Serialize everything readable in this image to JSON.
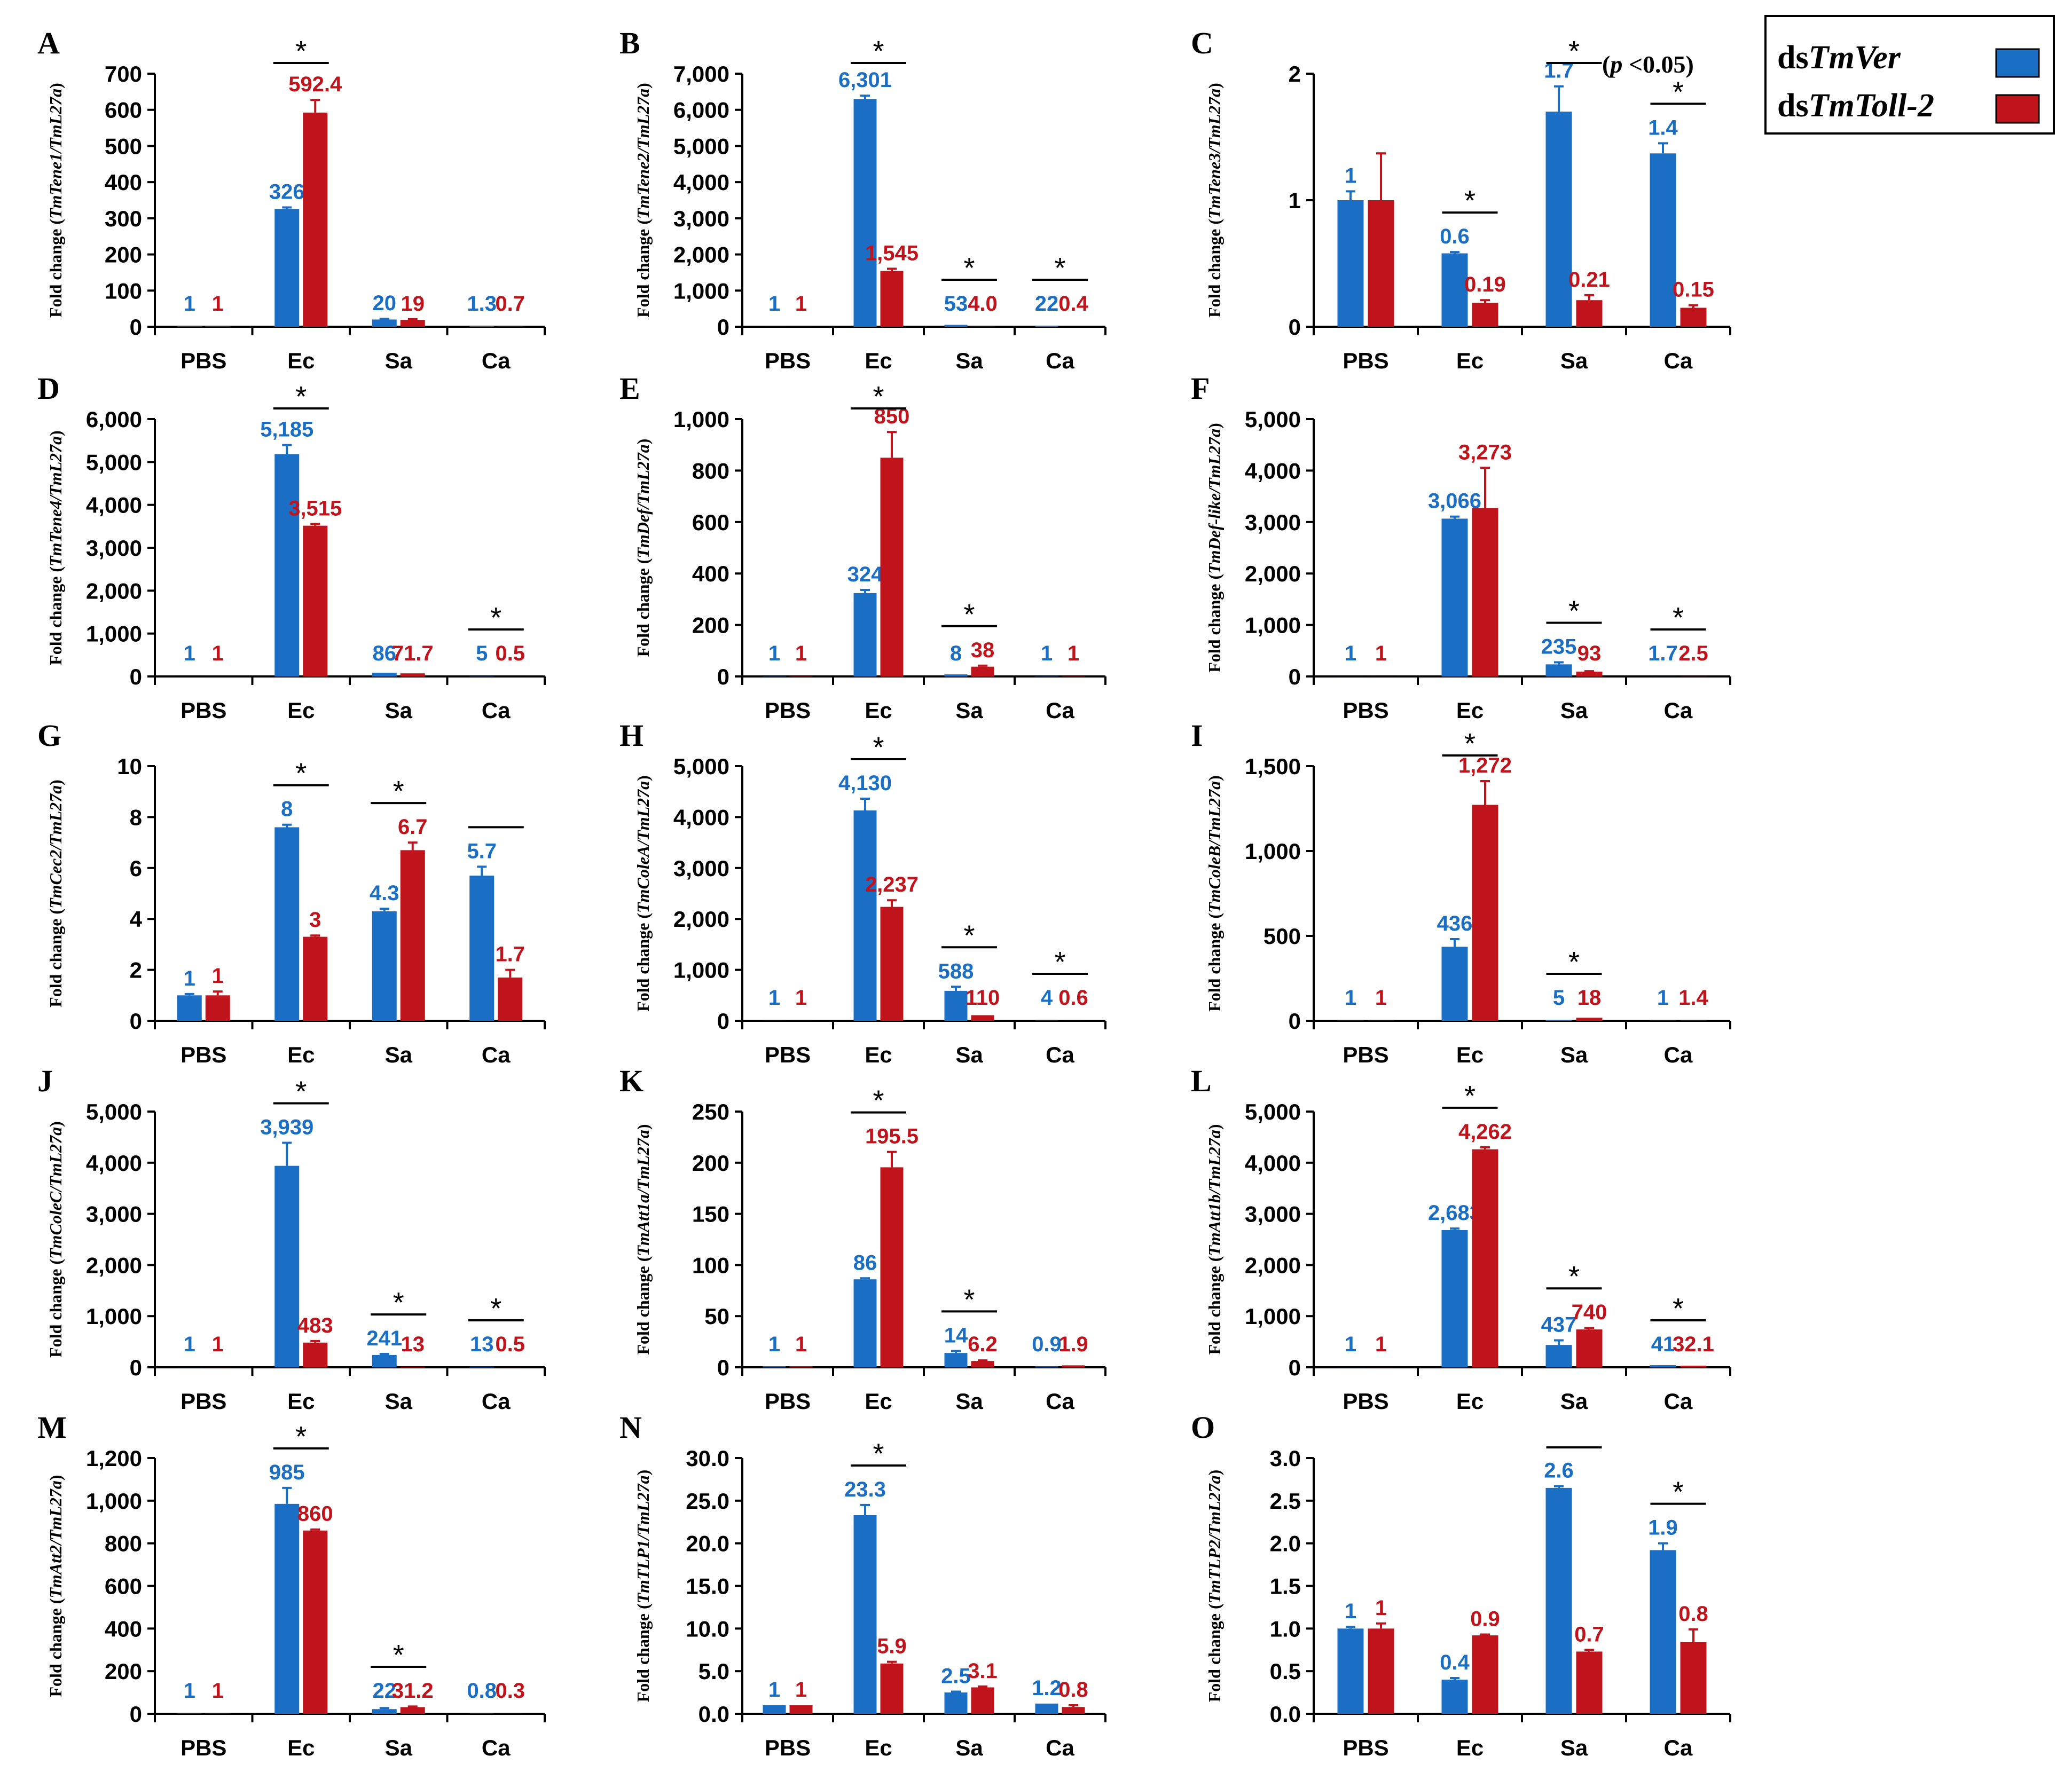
{
  "legend": {
    "items": [
      {
        "prefix": "ds",
        "name": "TmVer",
        "color": "#1a6fc4"
      },
      {
        "prefix": "ds",
        "name": "TmToll-2",
        "color": "#c0141c"
      }
    ]
  },
  "significance_note": {
    "open": "(",
    "p": "p",
    "rest": " <0.05)"
  },
  "chart_data": [
    {
      "panel": "A",
      "type": "bar",
      "ylabel": {
        "pre": "Fold change (",
        "gene": "TmTene1/TmL27a",
        "post": ")"
      },
      "categories": [
        "PBS",
        "Ec",
        "Sa",
        "Ca"
      ],
      "ylim": [
        0,
        700
      ],
      "yticks": [
        "0",
        "100",
        "200",
        "300",
        "400",
        "500",
        "600",
        "700"
      ],
      "series": [
        {
          "name": "dsTmVer",
          "values": [
            1,
            326,
            20,
            1.3
          ]
        },
        {
          "name": "dsTmToll-2",
          "values": [
            1,
            592.4,
            19,
            0.7
          ]
        }
      ],
      "errors": [
        [
          0,
          4,
          2,
          0
        ],
        [
          0,
          35,
          2,
          0
        ]
      ],
      "labels": [
        [
          "1",
          "326",
          "20",
          "1.3"
        ],
        [
          "1",
          "592.4",
          "19",
          "0.7"
        ]
      ],
      "sig": [
        {
          "cat": 1,
          "star": true
        }
      ]
    },
    {
      "panel": "B",
      "type": "bar",
      "ylabel": {
        "pre": "Fold change (",
        "gene": "TmTene2/TmL27a",
        "post": ")"
      },
      "categories": [
        "PBS",
        "Ec",
        "Sa",
        "Ca"
      ],
      "ylim": [
        0,
        7000
      ],
      "yticks": [
        "0",
        "1,000",
        "2,000",
        "3,000",
        "4,000",
        "5,000",
        "6,000",
        "7,000"
      ],
      "series": [
        {
          "name": "dsTmVer",
          "values": [
            1,
            6301,
            53,
            22
          ]
        },
        {
          "name": "dsTmToll-2",
          "values": [
            1,
            1545,
            4.0,
            0.4
          ]
        }
      ],
      "errors": [
        [
          0,
          90,
          0,
          0
        ],
        [
          0,
          60,
          0,
          0
        ]
      ],
      "labels": [
        [
          "1",
          "6,301",
          "53",
          "22"
        ],
        [
          "1",
          "1,545",
          "4.0",
          "0.4"
        ]
      ],
      "sig": [
        {
          "cat": 1,
          "star": true
        },
        {
          "cat": 2,
          "star": true
        },
        {
          "cat": 3,
          "star": true
        }
      ]
    },
    {
      "panel": "C",
      "type": "bar",
      "ylabel": {
        "pre": "Fold change (",
        "gene": "TmTene3/TmL27a",
        "post": ")"
      },
      "categories": [
        "PBS",
        "Ec",
        "Sa",
        "Ca"
      ],
      "ylim": [
        0,
        2
      ],
      "yticks": [
        "0",
        "1",
        "2"
      ],
      "series": [
        {
          "name": "dsTmVer",
          "values": [
            1,
            0.58,
            1.7,
            1.37
          ]
        },
        {
          "name": "dsTmToll-2",
          "values": [
            1,
            0.19,
            0.21,
            0.15
          ]
        }
      ],
      "errors": [
        [
          0.07,
          0.01,
          0.2,
          0.08
        ],
        [
          0.37,
          0.02,
          0.04,
          0.02
        ]
      ],
      "labels": [
        [
          "1",
          "0.6",
          "1.7",
          "1.4"
        ],
        [
          "",
          "0.19",
          "0.21",
          "0.15"
        ]
      ],
      "sig": [
        {
          "cat": 1,
          "star": true
        },
        {
          "cat": 2,
          "star": true
        },
        {
          "cat": 3,
          "star": true
        }
      ]
    },
    {
      "panel": "D",
      "type": "bar",
      "ylabel": {
        "pre": "Fold change (",
        "gene": "TmTene4/TmL27a",
        "post": ")"
      },
      "categories": [
        "PBS",
        "Ec",
        "Sa",
        "Ca"
      ],
      "ylim": [
        0,
        6000
      ],
      "yticks": [
        "0",
        "1,000",
        "2,000",
        "3,000",
        "4,000",
        "5,000",
        "6,000"
      ],
      "series": [
        {
          "name": "dsTmVer",
          "values": [
            1,
            5185,
            86,
            5
          ]
        },
        {
          "name": "dsTmToll-2",
          "values": [
            1,
            3515,
            71.7,
            0.5
          ]
        }
      ],
      "errors": [
        [
          0,
          210,
          0,
          0
        ],
        [
          0,
          40,
          0,
          0
        ]
      ],
      "labels": [
        [
          "1",
          "5,185",
          "86",
          "5"
        ],
        [
          "1",
          "3,515",
          "71.7",
          "0.5"
        ]
      ],
      "sig": [
        {
          "cat": 1,
          "star": true
        },
        {
          "cat": 3,
          "star": true
        }
      ]
    },
    {
      "panel": "E",
      "type": "bar",
      "ylabel": {
        "pre": "Fold change (",
        "gene": "TmDef/TmL27a",
        "post": ")"
      },
      "categories": [
        "PBS",
        "Ec",
        "Sa",
        "Ca"
      ],
      "ylim": [
        0,
        1000
      ],
      "yticks": [
        "0",
        "200",
        "400",
        "600",
        "800",
        "1,000"
      ],
      "series": [
        {
          "name": "dsTmVer",
          "values": [
            1,
            324,
            8,
            1
          ]
        },
        {
          "name": "dsTmToll-2",
          "values": [
            1,
            850,
            38,
            1
          ]
        }
      ],
      "errors": [
        [
          0,
          12,
          0,
          0
        ],
        [
          0,
          100,
          4,
          0
        ]
      ],
      "labels": [
        [
          "1",
          "324",
          "8",
          "1"
        ],
        [
          "1",
          "850",
          "38",
          "1"
        ]
      ],
      "sig": [
        {
          "cat": 1,
          "star": true
        },
        {
          "cat": 2,
          "star": true
        }
      ]
    },
    {
      "panel": "F",
      "type": "bar",
      "ylabel": {
        "pre": "Fold change (",
        "gene": "TmDef-like/TmL27a",
        "post": ")"
      },
      "categories": [
        "PBS",
        "Ec",
        "Sa",
        "Ca"
      ],
      "ylim": [
        0,
        5000
      ],
      "yticks": [
        "0",
        "1,000",
        "2,000",
        "3,000",
        "4,000",
        "5,000"
      ],
      "series": [
        {
          "name": "dsTmVer",
          "values": [
            1,
            3066,
            235,
            1.7
          ]
        },
        {
          "name": "dsTmToll-2",
          "values": [
            1,
            3273,
            93,
            2.5
          ]
        }
      ],
      "errors": [
        [
          0,
          40,
          40,
          0
        ],
        [
          0,
          780,
          10,
          0
        ]
      ],
      "labels": [
        [
          "1",
          "3,066",
          "235",
          "1.7"
        ],
        [
          "1",
          "3,273",
          "93",
          "2.5"
        ]
      ],
      "sig": [
        {
          "cat": 2,
          "star": true
        },
        {
          "cat": 3,
          "star": true
        }
      ]
    },
    {
      "panel": "G",
      "type": "bar",
      "ylabel": {
        "pre": "Fold change (",
        "gene": "TmCec2/TmL27a",
        "post": ")"
      },
      "categories": [
        "PBS",
        "Ec",
        "Sa",
        "Ca"
      ],
      "ylim": [
        0,
        10
      ],
      "yticks": [
        "0",
        "2",
        "4",
        "6",
        "8",
        "10"
      ],
      "series": [
        {
          "name": "dsTmVer",
          "values": [
            1,
            7.6,
            4.3,
            5.7
          ]
        },
        {
          "name": "dsTmToll-2",
          "values": [
            1,
            3.3,
            6.7,
            1.7
          ]
        }
      ],
      "errors": [
        [
          0.05,
          0.1,
          0.1,
          0.35
        ],
        [
          0.15,
          0.05,
          0.3,
          0.3
        ]
      ],
      "labels": [
        [
          "1",
          "8",
          "4.3",
          "5.7"
        ],
        [
          "1",
          "3",
          "6.7",
          "1.7"
        ]
      ],
      "sig": [
        {
          "cat": 1,
          "star": true
        },
        {
          "cat": 2,
          "star": true
        },
        {
          "cat": 3,
          "star": false
        }
      ]
    },
    {
      "panel": "H",
      "type": "bar",
      "ylabel": {
        "pre": "Fold change (",
        "gene": "TmColeA/TmL27a",
        "post": ")"
      },
      "categories": [
        "PBS",
        "Ec",
        "Sa",
        "Ca"
      ],
      "ylim": [
        0,
        5000
      ],
      "yticks": [
        "0",
        "1,000",
        "2,000",
        "3,000",
        "4,000",
        "5,000"
      ],
      "series": [
        {
          "name": "dsTmVer",
          "values": [
            1,
            4130,
            588,
            4
          ]
        },
        {
          "name": "dsTmToll-2",
          "values": [
            1,
            2237,
            110,
            0.6
          ]
        }
      ],
      "errors": [
        [
          0,
          230,
          80,
          0
        ],
        [
          0,
          130,
          0,
          0
        ]
      ],
      "labels": [
        [
          "1",
          "4,130",
          "588",
          "4"
        ],
        [
          "1",
          "2,237",
          "110",
          "0.6"
        ]
      ],
      "sig": [
        {
          "cat": 1,
          "star": true
        },
        {
          "cat": 2,
          "star": true
        },
        {
          "cat": 3,
          "star": true
        }
      ]
    },
    {
      "panel": "I",
      "type": "bar",
      "ylabel": {
        "pre": "Fold change (",
        "gene": "TmColeB/TmL27a",
        "post": ")"
      },
      "categories": [
        "PBS",
        "Ec",
        "Sa",
        "Ca"
      ],
      "ylim": [
        0,
        1500
      ],
      "yticks": [
        "0",
        "500",
        "1,000",
        "1,500"
      ],
      "series": [
        {
          "name": "dsTmVer",
          "values": [
            1,
            436,
            5,
            1
          ]
        },
        {
          "name": "dsTmToll-2",
          "values": [
            1,
            1272,
            18,
            1.4
          ]
        }
      ],
      "errors": [
        [
          0,
          45,
          0,
          0
        ],
        [
          0,
          140,
          0,
          0
        ]
      ],
      "labels": [
        [
          "1",
          "436",
          "5",
          "1"
        ],
        [
          "1",
          "1,272",
          "18",
          "1.4"
        ]
      ],
      "sig": [
        {
          "cat": 1,
          "star": true
        },
        {
          "cat": 2,
          "star": true
        }
      ]
    },
    {
      "panel": "J",
      "type": "bar",
      "ylabel": {
        "pre": "Fold change (",
        "gene": "TmColeC/TmL27a",
        "post": ")"
      },
      "categories": [
        "PBS",
        "Ec",
        "Sa",
        "Ca"
      ],
      "ylim": [
        0,
        5000
      ],
      "yticks": [
        "0",
        "1,000",
        "2,000",
        "3,000",
        "4,000",
        "5,000"
      ],
      "series": [
        {
          "name": "dsTmVer",
          "values": [
            1,
            3939,
            241,
            13
          ]
        },
        {
          "name": "dsTmToll-2",
          "values": [
            1,
            483,
            13,
            0.5
          ]
        }
      ],
      "errors": [
        [
          0,
          450,
          20,
          0
        ],
        [
          0,
          30,
          0,
          0
        ]
      ],
      "labels": [
        [
          "1",
          "3,939",
          "241",
          "13"
        ],
        [
          "1",
          "483",
          "13",
          "0.5"
        ]
      ],
      "sig": [
        {
          "cat": 1,
          "star": true
        },
        {
          "cat": 2,
          "star": true
        },
        {
          "cat": 3,
          "star": true
        }
      ]
    },
    {
      "panel": "K",
      "type": "bar",
      "ylabel": {
        "pre": "Fold change (",
        "gene": "TmAtt1a/TmL27a",
        "post": ")"
      },
      "categories": [
        "PBS",
        "Ec",
        "Sa",
        "Ca"
      ],
      "ylim": [
        0,
        250
      ],
      "yticks": [
        "0",
        "50",
        "100",
        "150",
        "200",
        "250"
      ],
      "series": [
        {
          "name": "dsTmVer",
          "values": [
            1,
            86,
            14,
            0.9
          ]
        },
        {
          "name": "dsTmToll-2",
          "values": [
            1,
            195.5,
            6.2,
            1.9
          ]
        }
      ],
      "errors": [
        [
          0,
          1,
          2,
          0
        ],
        [
          0,
          15,
          0.5,
          0
        ]
      ],
      "labels": [
        [
          "1",
          "86",
          "14",
          "0.9"
        ],
        [
          "1",
          "195.5",
          "6.2",
          "1.9"
        ]
      ],
      "sig": [
        {
          "cat": 1,
          "star": true
        },
        {
          "cat": 2,
          "star": true
        }
      ]
    },
    {
      "panel": "L",
      "type": "bar",
      "ylabel": {
        "pre": "Fold change (",
        "gene": "TmAtt1b/TmL27a",
        "post": ")"
      },
      "categories": [
        "PBS",
        "Ec",
        "Sa",
        "Ca"
      ],
      "ylim": [
        0,
        5000
      ],
      "yticks": [
        "0",
        "1,000",
        "2,000",
        "3,000",
        "4,000",
        "5,000"
      ],
      "series": [
        {
          "name": "dsTmVer",
          "values": [
            1,
            2683,
            437,
            41
          ]
        },
        {
          "name": "dsTmToll-2",
          "values": [
            1,
            4262,
            740,
            32.1
          ]
        }
      ],
      "errors": [
        [
          0,
          30,
          90,
          0
        ],
        [
          0,
          40,
          30,
          0
        ]
      ],
      "labels": [
        [
          "1",
          "2,683",
          "437",
          "41"
        ],
        [
          "1",
          "4,262",
          "740",
          "32.1"
        ]
      ],
      "sig": [
        {
          "cat": 1,
          "star": true
        },
        {
          "cat": 2,
          "star": true
        },
        {
          "cat": 3,
          "star": true
        }
      ]
    },
    {
      "panel": "M",
      "type": "bar",
      "ylabel": {
        "pre": "Fold change (",
        "gene": "TmAtt2/TmL27a",
        "post": ")"
      },
      "categories": [
        "PBS",
        "Ec",
        "Sa",
        "Ca"
      ],
      "ylim": [
        0,
        1200
      ],
      "yticks": [
        "0",
        "200",
        "400",
        "600",
        "800",
        "1,000",
        "1,200"
      ],
      "series": [
        {
          "name": "dsTmVer",
          "values": [
            1,
            985,
            22,
            0.8
          ]
        },
        {
          "name": "dsTmToll-2",
          "values": [
            1,
            860,
            31.2,
            0.3
          ]
        }
      ],
      "errors": [
        [
          0,
          75,
          5,
          0
        ],
        [
          0,
          5,
          3,
          0
        ]
      ],
      "labels": [
        [
          "1",
          "985",
          "22",
          "0.8"
        ],
        [
          "1",
          "860",
          "31.2",
          "0.3"
        ]
      ],
      "sig": [
        {
          "cat": 1,
          "star": true
        },
        {
          "cat": 2,
          "star": true
        }
      ]
    },
    {
      "panel": "N",
      "type": "bar",
      "ylabel": {
        "pre": "Fold change (",
        "gene": "TmTLP1/TmL27a",
        "post": ")"
      },
      "categories": [
        "PBS",
        "Ec",
        "Sa",
        "Ca"
      ],
      "ylim": [
        0,
        30
      ],
      "yticks": [
        "0.0",
        "5.0",
        "10.0",
        "15.0",
        "20.0",
        "25.0",
        "30.0"
      ],
      "series": [
        {
          "name": "dsTmVer",
          "values": [
            1,
            23.3,
            2.5,
            1.2
          ]
        },
        {
          "name": "dsTmToll-2",
          "values": [
            1,
            5.9,
            3.1,
            0.8
          ]
        }
      ],
      "errors": [
        [
          0,
          1.2,
          0.1,
          0
        ],
        [
          0,
          0.2,
          0.1,
          0.2
        ]
      ],
      "labels": [
        [
          "1",
          "23.3",
          "2.5",
          "1.2"
        ],
        [
          "1",
          "5.9",
          "3.1",
          "0.8"
        ]
      ],
      "sig": [
        {
          "cat": 1,
          "star": true
        }
      ]
    },
    {
      "panel": "O",
      "type": "bar",
      "ylabel": {
        "pre": "Fold change (",
        "gene": "TmTLP2/TmL27a",
        "post": ")"
      },
      "categories": [
        "PBS",
        "Ec",
        "Sa",
        "Ca"
      ],
      "ylim": [
        0,
        3
      ],
      "yticks": [
        "0.0",
        "0.5",
        "1.0",
        "1.5",
        "2.0",
        "2.5",
        "3.0"
      ],
      "series": [
        {
          "name": "dsTmVer",
          "values": [
            1,
            0.4,
            2.65,
            1.92
          ]
        },
        {
          "name": "dsTmToll-2",
          "values": [
            1,
            0.92,
            0.73,
            0.84
          ]
        }
      ],
      "errors": [
        [
          0.02,
          0.02,
          0.02,
          0.08
        ],
        [
          0.06,
          0.01,
          0.02,
          0.15
        ]
      ],
      "labels": [
        [
          "1",
          "0.4",
          "2.6",
          "1.9"
        ],
        [
          "1",
          "0.9",
          "0.7",
          "0.8"
        ]
      ],
      "sig": [
        {
          "cat": 2,
          "star": false
        },
        {
          "cat": 3,
          "star": true
        }
      ]
    }
  ]
}
